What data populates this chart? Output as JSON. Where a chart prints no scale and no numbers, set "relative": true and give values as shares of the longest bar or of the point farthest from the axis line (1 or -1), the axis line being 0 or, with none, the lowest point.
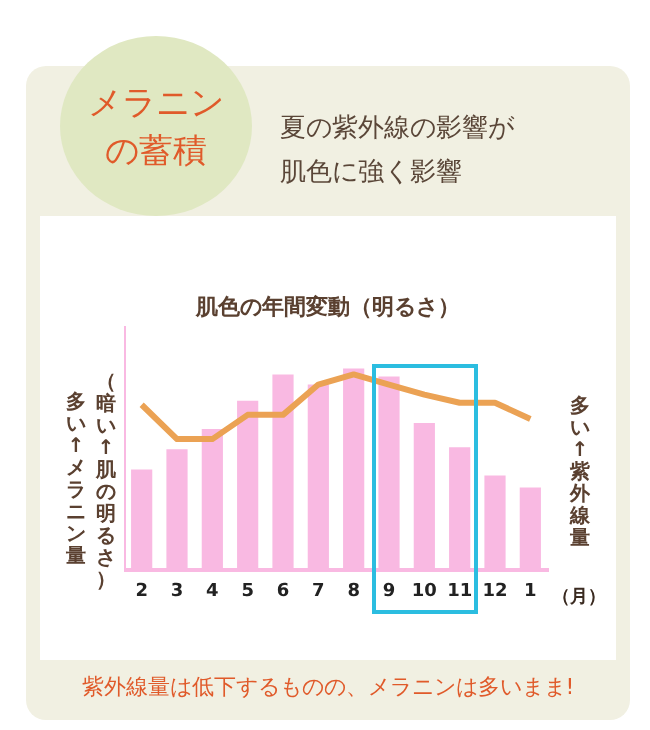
{
  "chart_data": {
    "type": "bar",
    "title": "肌色の年間変動（明るさ）",
    "ylabel": "多い↑メラニン量",
    "y2label": "多い↑紫外線量",
    "annotations": [
      "メラニンの蓄積",
      "夏の紫外線の影響が肌色に強く影響",
      "（暗い↑肌の明るさ）",
      "（月）",
      "紫外線量は低下するものの、メラニンは多いまま!"
    ],
    "categories": [
      "2",
      "3",
      "4",
      "5",
      "6",
      "7",
      "8",
      "9",
      "10",
      "11",
      "12",
      "1"
    ],
    "relative": true,
    "legend": false,
    "grid": false,
    "series": [
      {
        "color": "#f9b9e2",
        "values": [
          0.5,
          0.6,
          0.7,
          0.84,
          0.97,
          0.92,
          1,
          0.96,
          0.73,
          0.61,
          0.47,
          0.41
        ]
      },
      {
        "type": "line",
        "color": "#eba254",
        "marker": "none",
        "values": [
          0.82,
          0.65,
          0.65,
          0.77,
          0.77,
          0.92,
          0.97,
          0.92,
          0.87,
          0.83,
          0.83,
          0.75
        ]
      }
    ]
  }
}
